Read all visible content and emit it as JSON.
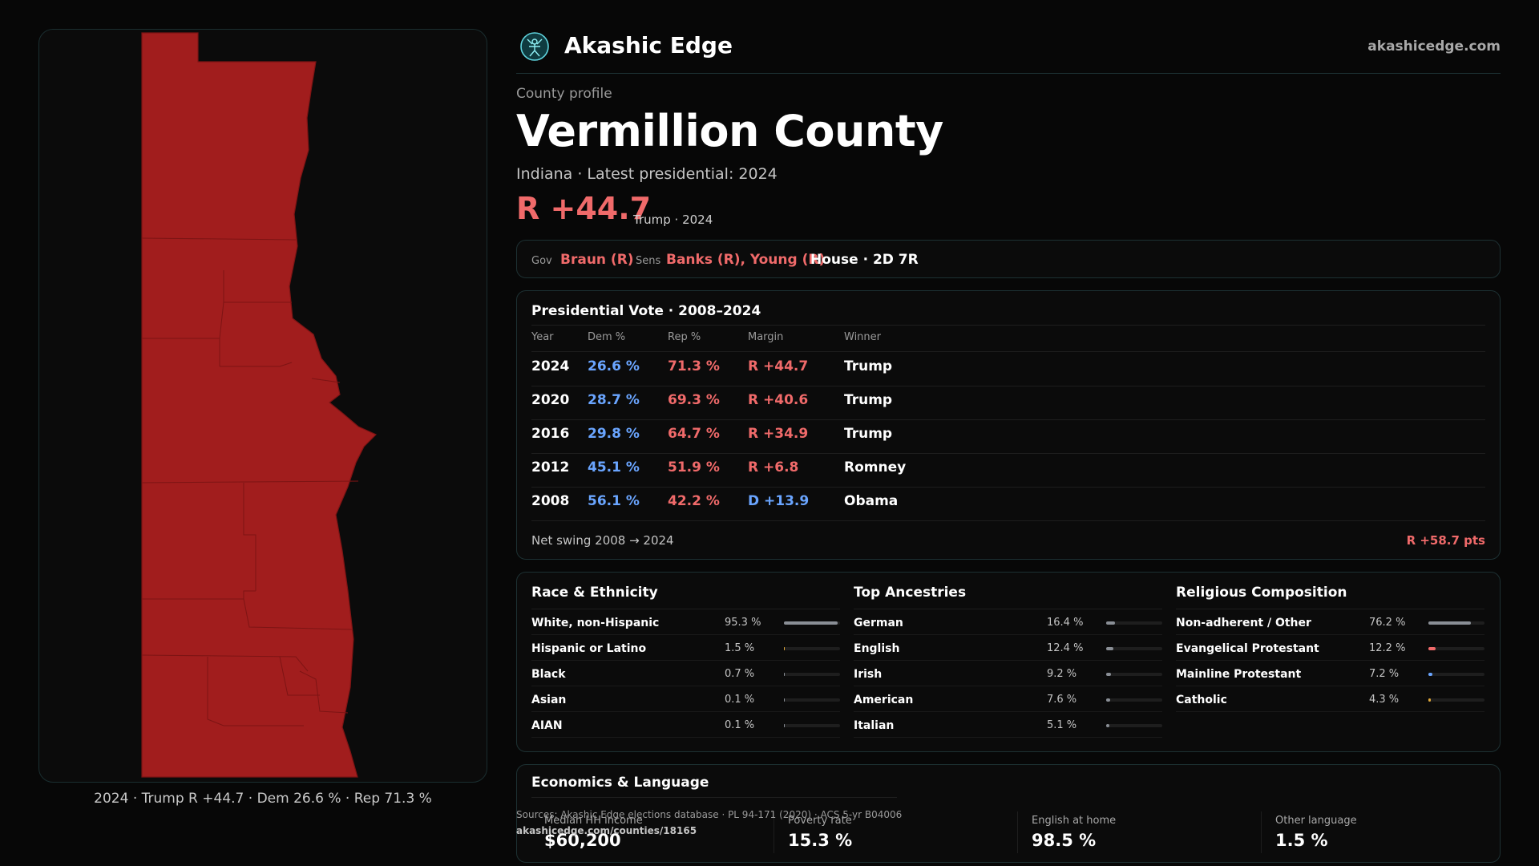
{
  "map": {
    "caption": "2024 · Trump R +44.7 · Dem 26.6 % · Rep 71.3 %",
    "fill_color": "#a11d1d",
    "border_color": "#7d1414"
  },
  "brand": {
    "name": "Akashic Edge",
    "url": "akashicedge.com",
    "logo_icon": "globe-logo-icon"
  },
  "header": {
    "eyebrow": "County profile",
    "title": "Vermillion County",
    "subtitle": "Indiana · Latest presidential: 2024",
    "margin": "R +44.7",
    "margin_note": "Trump · 2024"
  },
  "officials": {
    "gov_label": "Gov",
    "gov_value": "Braun (R)",
    "sens_label": "Sens",
    "sens_value": "Banks (R), Young (R)",
    "house_value": "House · 2D 7R"
  },
  "presidential": {
    "title": "Presidential Vote · 2008–2024",
    "headers": [
      "Year",
      "Dem %",
      "Rep %",
      "Margin",
      "Winner"
    ],
    "rows": [
      {
        "year": "2024",
        "dem": "26.6 %",
        "rep": "71.3 %",
        "margin": "R +44.7",
        "winner": "Trump",
        "party": "R"
      },
      {
        "year": "2020",
        "dem": "28.7 %",
        "rep": "69.3 %",
        "margin": "R +40.6",
        "winner": "Trump",
        "party": "R"
      },
      {
        "year": "2016",
        "dem": "29.8 %",
        "rep": "64.7 %",
        "margin": "R +34.9",
        "winner": "Trump",
        "party": "R"
      },
      {
        "year": "2012",
        "dem": "45.1 %",
        "rep": "51.9 %",
        "margin": "R +6.8",
        "winner": "Romney",
        "party": "R"
      },
      {
        "year": "2008",
        "dem": "56.1 %",
        "rep": "42.2 %",
        "margin": "D +13.9",
        "winner": "Obama",
        "party": "D"
      }
    ],
    "swing_label": "Net swing 2008 → 2024",
    "swing_value": "R +58.7 pts"
  },
  "demographics": {
    "race": {
      "title": "Race & Ethnicity",
      "items": [
        {
          "name": "White, non-Hispanic",
          "pct": "95.3 %",
          "share": 0.953
        },
        {
          "name": "Hispanic or Latino",
          "pct": "1.5 %",
          "share": 0.015
        },
        {
          "name": "Black",
          "pct": "0.7 %",
          "share": 0.007
        },
        {
          "name": "Asian",
          "pct": "0.1 %",
          "share": 0.001
        },
        {
          "name": "AIAN",
          "pct": "0.1 %",
          "share": 0.001
        }
      ]
    },
    "ancestry": {
      "title": "Top Ancestries",
      "items": [
        {
          "name": "German",
          "pct": "16.4 %",
          "share": 0.164
        },
        {
          "name": "English",
          "pct": "12.4 %",
          "share": 0.124
        },
        {
          "name": "Irish",
          "pct": "9.2 %",
          "share": 0.092
        },
        {
          "name": "American",
          "pct": "7.6 %",
          "share": 0.076
        },
        {
          "name": "Italian",
          "pct": "5.1 %",
          "share": 0.051
        }
      ]
    },
    "religion": {
      "title": "Religious Composition",
      "items": [
        {
          "name": "Non-adherent / Other",
          "pct": "76.2 %",
          "share": 0.762,
          "color": "#8a8f96"
        },
        {
          "name": "Evangelical Protestant",
          "pct": "12.2 %",
          "share": 0.122,
          "color": "#f06a6a"
        },
        {
          "name": "Mainline Protestant",
          "pct": "7.2 %",
          "share": 0.072,
          "color": "#6aa5ff"
        },
        {
          "name": "Catholic",
          "pct": "4.3 %",
          "share": 0.043,
          "color": "#e0a83a"
        }
      ]
    }
  },
  "economics": {
    "title": "Economics & Language",
    "stats": [
      {
        "label": "Median HH income",
        "value": "$60,200"
      },
      {
        "label": "Poverty rate",
        "value": "15.3 %"
      },
      {
        "label": "English at home",
        "value": "98.5 %"
      },
      {
        "label": "Other language",
        "value": "1.5 %"
      }
    ]
  },
  "sources": {
    "text": "Sources: Akashic Edge elections database · PL 94-171 (2020) · ACS 5-yr B04006",
    "url": "akashicedge.com/counties/18165"
  }
}
